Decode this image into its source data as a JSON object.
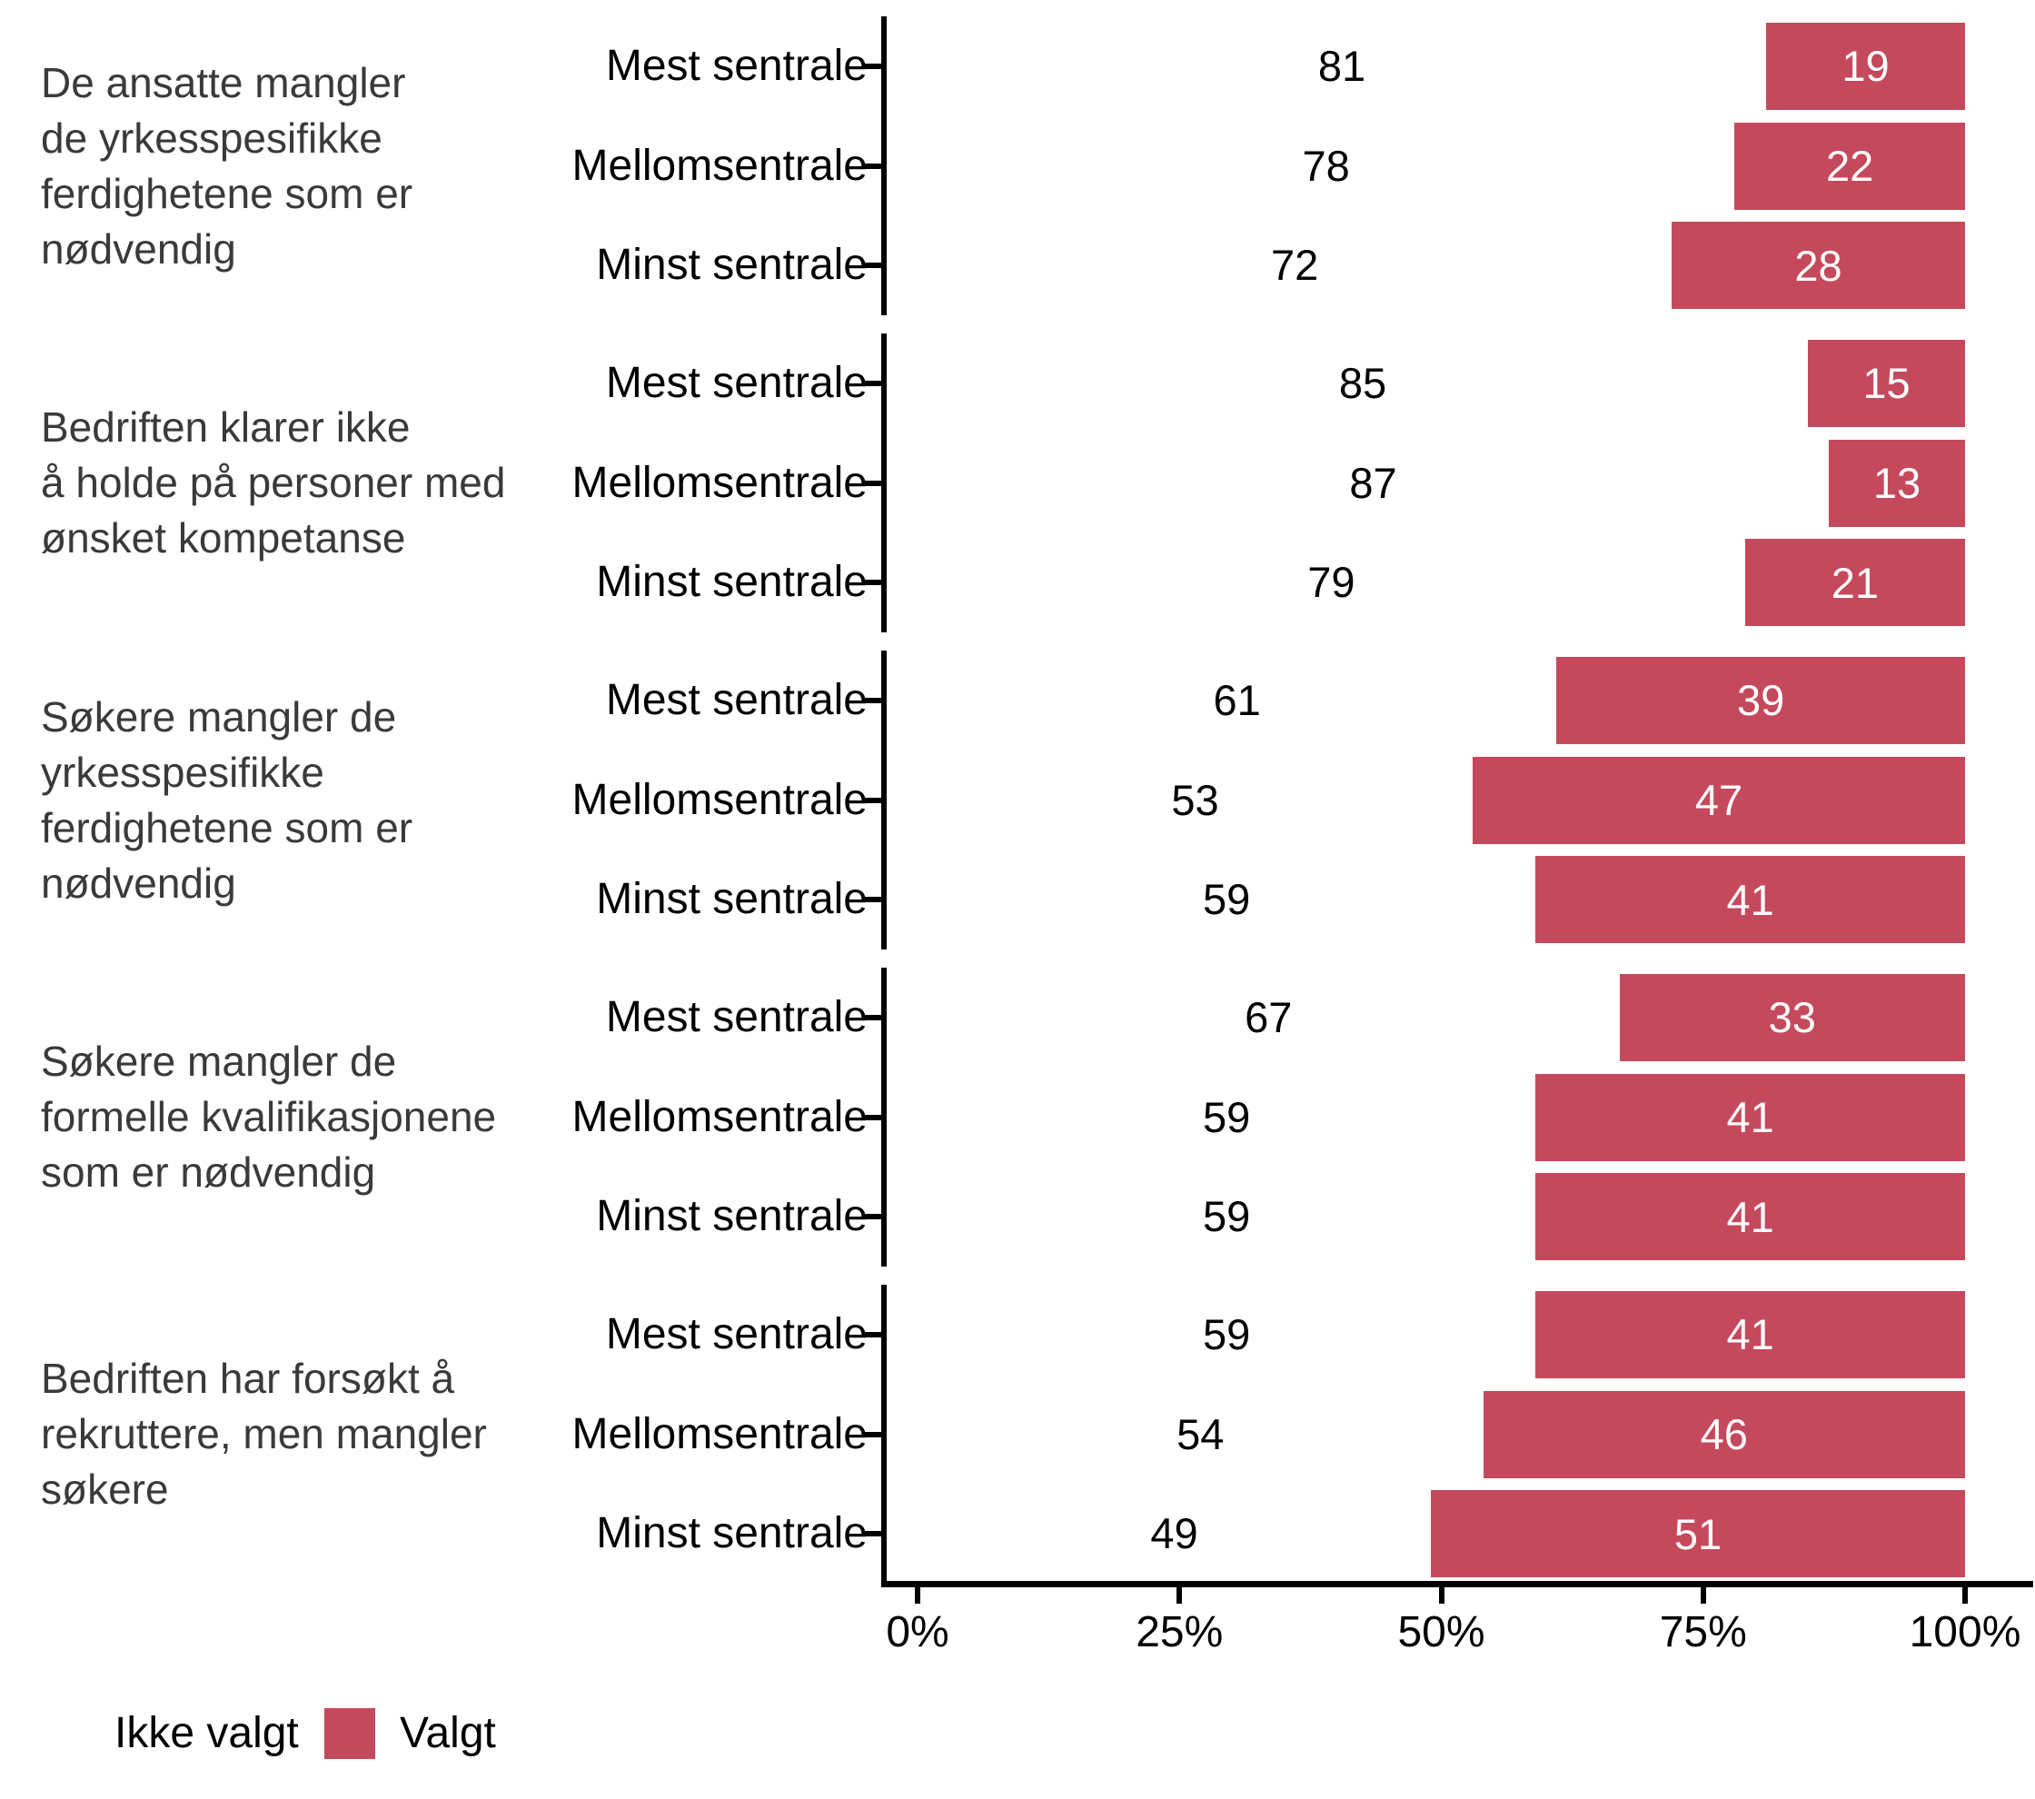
{
  "chart_data": {
    "type": "bar",
    "orientation": "horizontal",
    "stacked": true,
    "unit": "percent",
    "title": "",
    "xlabel": "",
    "ylabel": "",
    "x_range": [
      0,
      100
    ],
    "x_ticks": [
      "0%",
      "25%",
      "50%",
      "75%",
      "100%"
    ],
    "x_tick_values": [
      0,
      25,
      50,
      75,
      100
    ],
    "categories": [
      "Mest sentrale",
      "Mellomsentrale",
      "Minst sentrale"
    ],
    "series_names": [
      "Ikke valgt",
      "Valgt"
    ],
    "groups": [
      {
        "label": "De ansatte mangler\nde yrkesspesifikke\nferdighetene som er\nnødvendig",
        "rows": [
          {
            "category": "Mest sentrale",
            "ikke_valgt": 81,
            "valgt": 19
          },
          {
            "category": "Mellomsentrale",
            "ikke_valgt": 78,
            "valgt": 22
          },
          {
            "category": "Minst sentrale",
            "ikke_valgt": 72,
            "valgt": 28
          }
        ]
      },
      {
        "label": "Bedriften klarer ikke\nå holde på personer med\nønsket kompetanse",
        "rows": [
          {
            "category": "Mest sentrale",
            "ikke_valgt": 85,
            "valgt": 15
          },
          {
            "category": "Mellomsentrale",
            "ikke_valgt": 87,
            "valgt": 13
          },
          {
            "category": "Minst sentrale",
            "ikke_valgt": 79,
            "valgt": 21
          }
        ]
      },
      {
        "label": "Søkere mangler de\nyrkesspesifikke\nferdighetene som er\nnødvendig",
        "rows": [
          {
            "category": "Mest sentrale",
            "ikke_valgt": 61,
            "valgt": 39
          },
          {
            "category": "Mellomsentrale",
            "ikke_valgt": 53,
            "valgt": 47
          },
          {
            "category": "Minst sentrale",
            "ikke_valgt": 59,
            "valgt": 41
          }
        ]
      },
      {
        "label": "Søkere mangler de\nformelle kvalifikasjonene\nsom er nødvendig",
        "rows": [
          {
            "category": "Mest sentrale",
            "ikke_valgt": 67,
            "valgt": 33
          },
          {
            "category": "Mellomsentrale",
            "ikke_valgt": 59,
            "valgt": 41
          },
          {
            "category": "Minst sentrale",
            "ikke_valgt": 59,
            "valgt": 41
          }
        ]
      },
      {
        "label": "Bedriften har forsøkt å\nrekruttere, men mangler\nsøkere",
        "rows": [
          {
            "category": "Mest sentrale",
            "ikke_valgt": 59,
            "valgt": 41
          },
          {
            "category": "Mellomsentrale",
            "ikke_valgt": 54,
            "valgt": 46
          },
          {
            "category": "Minst sentrale",
            "ikke_valgt": 49,
            "valgt": 51
          }
        ]
      }
    ],
    "legend": {
      "position": "bottom-left",
      "items": [
        {
          "label": "Ikke valgt",
          "color": "#ffffff"
        },
        {
          "label": "Valgt",
          "color": "#c5495c"
        }
      ]
    },
    "colors": {
      "valgt": "#c5495c",
      "ikke_valgt": "#ffffff",
      "axis": "#000000",
      "value_label_on_bar": "#ffffff",
      "value_label_off_bar": "#000000",
      "group_label_text": "#3a3a3a"
    },
    "legend_off_label": "Ikke valgt",
    "legend_on_label": "Valgt"
  }
}
